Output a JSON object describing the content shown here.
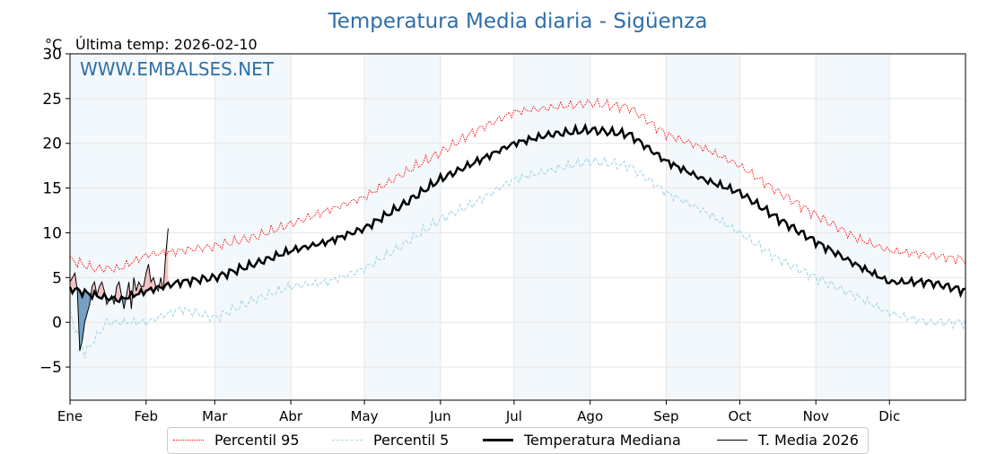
{
  "chart_data": {
    "type": "line",
    "title": "Temperatura Media diaria - Sigüenza",
    "unit_label": "°C",
    "last_temp_label": "Última temp: 2026-02-10",
    "watermark": "WWW.EMBALSES.NET",
    "ylim": [
      -8.7,
      30
    ],
    "yticks": [
      30,
      25,
      20,
      15,
      10,
      5,
      0,
      -5
    ],
    "xlim": [
      0,
      365
    ],
    "months": [
      {
        "label": "Ene",
        "day": 0
      },
      {
        "label": "Feb",
        "day": 31
      },
      {
        "label": "Mar",
        "day": 59
      },
      {
        "label": "Abr",
        "day": 90
      },
      {
        "label": "May",
        "day": 120
      },
      {
        "label": "Jun",
        "day": 151
      },
      {
        "label": "Jul",
        "day": 181
      },
      {
        "label": "Ago",
        "day": 212
      },
      {
        "label": "Sep",
        "day": 243
      },
      {
        "label": "Oct",
        "day": 273
      },
      {
        "label": "Nov",
        "day": 304
      },
      {
        "label": "Dic",
        "day": 334
      }
    ],
    "series": [
      {
        "name": "Percentil 95",
        "color": "#ff0000",
        "style": "dotted",
        "points": [
          [
            0,
            7
          ],
          [
            10,
            6
          ],
          [
            20,
            6
          ],
          [
            31,
            7.5
          ],
          [
            45,
            8
          ],
          [
            59,
            8.5
          ],
          [
            75,
            9.5
          ],
          [
            90,
            11
          ],
          [
            105,
            12.5
          ],
          [
            120,
            14
          ],
          [
            135,
            16.5
          ],
          [
            151,
            19
          ],
          [
            166,
            21.5
          ],
          [
            181,
            23.5
          ],
          [
            196,
            24
          ],
          [
            212,
            24.5
          ],
          [
            228,
            24
          ],
          [
            243,
            21
          ],
          [
            258,
            19.5
          ],
          [
            273,
            17.5
          ],
          [
            289,
            14.5
          ],
          [
            304,
            12
          ],
          [
            320,
            9.5
          ],
          [
            334,
            8
          ],
          [
            350,
            7.5
          ],
          [
            365,
            7
          ]
        ]
      },
      {
        "name": "Percentil 5",
        "color": "#a8d8e8",
        "style": "dashed",
        "points": [
          [
            0,
            1
          ],
          [
            6,
            -3.5
          ],
          [
            15,
            0
          ],
          [
            31,
            0
          ],
          [
            45,
            1.5
          ],
          [
            59,
            0.5
          ],
          [
            75,
            2.5
          ],
          [
            90,
            4
          ],
          [
            105,
            4.5
          ],
          [
            120,
            6
          ],
          [
            135,
            8.5
          ],
          [
            151,
            11.5
          ],
          [
            166,
            13.5
          ],
          [
            181,
            16
          ],
          [
            196,
            17
          ],
          [
            212,
            18
          ],
          [
            228,
            17.5
          ],
          [
            243,
            14.5
          ],
          [
            258,
            12.5
          ],
          [
            273,
            10
          ],
          [
            289,
            7
          ],
          [
            304,
            5
          ],
          [
            320,
            3
          ],
          [
            334,
            1
          ],
          [
            350,
            0
          ],
          [
            365,
            0
          ]
        ]
      },
      {
        "name": "Temperatura Mediana",
        "color": "#000000",
        "style": "solid-bold",
        "points": [
          [
            0,
            3.8
          ],
          [
            10,
            3
          ],
          [
            20,
            2.5
          ],
          [
            31,
            3.5
          ],
          [
            45,
            4.5
          ],
          [
            59,
            5
          ],
          [
            75,
            6.5
          ],
          [
            90,
            8
          ],
          [
            105,
            9
          ],
          [
            120,
            10.5
          ],
          [
            135,
            13
          ],
          [
            151,
            16
          ],
          [
            166,
            18
          ],
          [
            181,
            20
          ],
          [
            196,
            21
          ],
          [
            212,
            21.5
          ],
          [
            228,
            21
          ],
          [
            243,
            18
          ],
          [
            258,
            16
          ],
          [
            273,
            14.5
          ],
          [
            289,
            11.5
          ],
          [
            304,
            9
          ],
          [
            320,
            6.5
          ],
          [
            334,
            4.5
          ],
          [
            350,
            4.5
          ],
          [
            365,
            3.5
          ]
        ]
      },
      {
        "name": "T. Media 2026",
        "color": "#000000",
        "style": "solid-thin",
        "points": [
          [
            0,
            4.5
          ],
          [
            1,
            5
          ],
          [
            2,
            5.5
          ],
          [
            3,
            3.5
          ],
          [
            4,
            -3.2
          ],
          [
            5,
            -2
          ],
          [
            6,
            0
          ],
          [
            7,
            1
          ],
          [
            8,
            2
          ],
          [
            9,
            4
          ],
          [
            10,
            4.5
          ],
          [
            11,
            3
          ],
          [
            12,
            4
          ],
          [
            13,
            4.5
          ],
          [
            14,
            3.5
          ],
          [
            15,
            2
          ],
          [
            16,
            2.5
          ],
          [
            17,
            3
          ],
          [
            18,
            2
          ],
          [
            19,
            4
          ],
          [
            20,
            4.5
          ],
          [
            21,
            3
          ],
          [
            22,
            1.5
          ],
          [
            23,
            3
          ],
          [
            24,
            4.5
          ],
          [
            25,
            1.5
          ],
          [
            26,
            5
          ],
          [
            27,
            3.5
          ],
          [
            28,
            4.5
          ],
          [
            29,
            4
          ],
          [
            30,
            4
          ],
          [
            31,
            5.5
          ],
          [
            32,
            6.5
          ],
          [
            33,
            4.5
          ],
          [
            34,
            5
          ],
          [
            35,
            4
          ],
          [
            36,
            3.5
          ],
          [
            37,
            5
          ],
          [
            38,
            3.5
          ],
          [
            39,
            7.5
          ],
          [
            40,
            10.5
          ]
        ]
      }
    ]
  }
}
